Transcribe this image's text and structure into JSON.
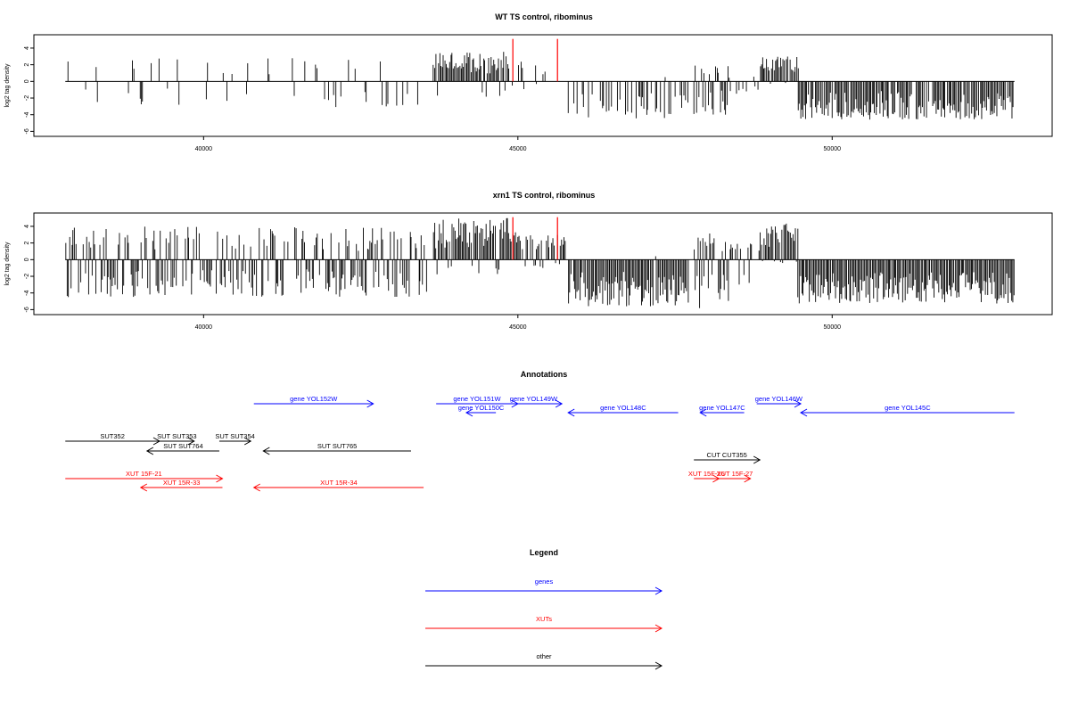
{
  "colors": {
    "gene": "#0000ff",
    "xut": "#ff0000",
    "other": "#000000",
    "marker": "#ff0000",
    "bar": "#000000"
  },
  "chart_data": [
    {
      "type": "bar",
      "title": "WT TS control, ribominus",
      "ylabel": "log2 tag density",
      "xlim": [
        37300,
        53500
      ],
      "ylim": [
        -6.6,
        5.6
      ],
      "xticks": [
        "40000",
        "45000",
        "50000"
      ],
      "yticks": [
        "4",
        "2",
        "0",
        "-2",
        "-4",
        "-6"
      ],
      "marker_lines_x": [
        44920,
        45630
      ],
      "regions": [
        {
          "x0": 37800,
          "x1": 43550,
          "density": 0.13,
          "up_frac": 0.55,
          "up_max": 2.8,
          "down_max": 3.2,
          "seed": 11
        },
        {
          "x0": 43650,
          "x1": 44850,
          "density": 1.0,
          "up_frac": 0.93,
          "up_max": 3.6,
          "down_max": 2.0,
          "seed": 12
        },
        {
          "x0": 44850,
          "x1": 45750,
          "density": 0.3,
          "up_frac": 0.8,
          "up_max": 2.4,
          "down_max": 1.0,
          "seed": 13
        },
        {
          "x0": 45800,
          "x1": 47700,
          "density": 0.45,
          "up_frac": 0.05,
          "up_max": 0.6,
          "down_max": 4.5,
          "seed": 14
        },
        {
          "x0": 47800,
          "x1": 48350,
          "density": 0.85,
          "up_frac": 0.45,
          "up_max": 2.2,
          "down_max": 4.0,
          "seed": 15
        },
        {
          "x0": 48350,
          "x1": 48850,
          "density": 0.2,
          "up_frac": 0.5,
          "up_max": 1.0,
          "down_max": 1.5,
          "seed": 16
        },
        {
          "x0": 48850,
          "x1": 49450,
          "density": 0.95,
          "up_frac": 0.95,
          "up_max": 3.0,
          "down_max": 0.5,
          "seed": 17
        },
        {
          "x0": 49450,
          "x1": 52900,
          "density": 0.9,
          "up_frac": 0.0,
          "up_max": 0.3,
          "down_max": 4.6,
          "seed": 18
        }
      ]
    },
    {
      "type": "bar",
      "title": "xrn1 TS control, ribominus",
      "ylabel": "log2 tag density",
      "xlim": [
        37300,
        53500
      ],
      "ylim": [
        -6.6,
        5.6
      ],
      "xticks": [
        "40000",
        "45000",
        "50000"
      ],
      "yticks": [
        "4",
        "2",
        "0",
        "-2",
        "-4",
        "-6"
      ],
      "marker_lines_x": [
        44920,
        45630
      ],
      "regions": [
        {
          "x0": 37800,
          "x1": 43550,
          "density": 0.75,
          "up_frac": 0.45,
          "up_max": 4.0,
          "down_max": 4.5,
          "seed": 21
        },
        {
          "x0": 43650,
          "x1": 44850,
          "density": 1.0,
          "up_frac": 0.9,
          "up_max": 5.0,
          "down_max": 2.0,
          "seed": 22
        },
        {
          "x0": 44850,
          "x1": 45750,
          "density": 0.85,
          "up_frac": 0.85,
          "up_max": 3.4,
          "down_max": 1.0,
          "seed": 23
        },
        {
          "x0": 45800,
          "x1": 47700,
          "density": 0.95,
          "up_frac": 0.03,
          "up_max": 0.5,
          "down_max": 5.6,
          "seed": 24
        },
        {
          "x0": 47800,
          "x1": 48350,
          "density": 0.95,
          "up_frac": 0.45,
          "up_max": 3.2,
          "down_max": 6.0,
          "seed": 25
        },
        {
          "x0": 48350,
          "x1": 48850,
          "density": 0.4,
          "up_frac": 0.6,
          "up_max": 2.0,
          "down_max": 3.0,
          "seed": 26
        },
        {
          "x0": 48850,
          "x1": 49450,
          "density": 1.0,
          "up_frac": 0.95,
          "up_max": 4.6,
          "down_max": 0.5,
          "seed": 27
        },
        {
          "x0": 49450,
          "x1": 52900,
          "density": 1.0,
          "up_frac": 0.0,
          "up_max": 0.3,
          "down_max": 5.3,
          "seed": 28
        }
      ]
    }
  ],
  "annotations": {
    "title": "Annotations",
    "items": [
      {
        "label": "gene YOL152W",
        "kind": "gene",
        "start": 40800,
        "end": 42700,
        "dir": "+",
        "lane": 0
      },
      {
        "label": "gene YOL151W",
        "kind": "gene",
        "start": 43700,
        "end": 45000,
        "dir": "+",
        "lane": 0
      },
      {
        "label": "gene YOL149W",
        "kind": "gene",
        "start": 44800,
        "end": 45700,
        "dir": "+",
        "lane": 0
      },
      {
        "label": "gene YOL150C",
        "kind": "gene",
        "start": 44180,
        "end": 44650,
        "dir": "-",
        "lane": 1
      },
      {
        "label": "gene YOL148C",
        "kind": "gene",
        "start": 45800,
        "end": 47550,
        "dir": "-",
        "lane": 1
      },
      {
        "label": "gene YOL147C",
        "kind": "gene",
        "start": 47900,
        "end": 48600,
        "dir": "-",
        "lane": 1
      },
      {
        "label": "gene YOL146W",
        "kind": "gene",
        "start": 48800,
        "end": 49500,
        "dir": "+",
        "lane": 0
      },
      {
        "label": "gene YOL145C",
        "kind": "gene",
        "start": 49500,
        "end": 52900,
        "dir": "-",
        "lane": 1
      },
      {
        "label": "SUT352",
        "kind": "other",
        "start": 37800,
        "end": 39300,
        "dir": "+",
        "lane": 2
      },
      {
        "label": "SUT SUT353",
        "kind": "other",
        "start": 39300,
        "end": 39850,
        "dir": "+",
        "lane": 2
      },
      {
        "label": "SUT SUT764",
        "kind": "other",
        "start": 39100,
        "end": 40250,
        "dir": "-",
        "lane": 3
      },
      {
        "label": "SUT SUT354",
        "kind": "other",
        "start": 40250,
        "end": 40750,
        "dir": "+",
        "lane": 2
      },
      {
        "label": "SUT SUT765",
        "kind": "other",
        "start": 40950,
        "end": 43300,
        "dir": "-",
        "lane": 3
      },
      {
        "label": "CUT CUT355",
        "kind": "other",
        "start": 47800,
        "end": 48850,
        "dir": "+",
        "lane": 4
      },
      {
        "label": "XUT 15F-21",
        "kind": "xut",
        "start": 37800,
        "end": 40300,
        "dir": "+",
        "lane": 5
      },
      {
        "label": "XUT 15R-33",
        "kind": "xut",
        "start": 39000,
        "end": 40300,
        "dir": "-",
        "lane": 6
      },
      {
        "label": "XUT 15R-34",
        "kind": "xut",
        "start": 40800,
        "end": 43500,
        "dir": "-",
        "lane": 6
      },
      {
        "label": "XUT 15F-26",
        "kind": "xut",
        "start": 47800,
        "end": 48200,
        "dir": "+",
        "lane": 5
      },
      {
        "label": "XUT 15F-27",
        "kind": "xut",
        "start": 48200,
        "end": 48700,
        "dir": "+",
        "lane": 5
      }
    ]
  },
  "legend": {
    "title": "Legend",
    "items": [
      {
        "label": "genes",
        "kind": "gene"
      },
      {
        "label": "XUTs",
        "kind": "xut"
      },
      {
        "label": "other",
        "kind": "other"
      }
    ]
  }
}
